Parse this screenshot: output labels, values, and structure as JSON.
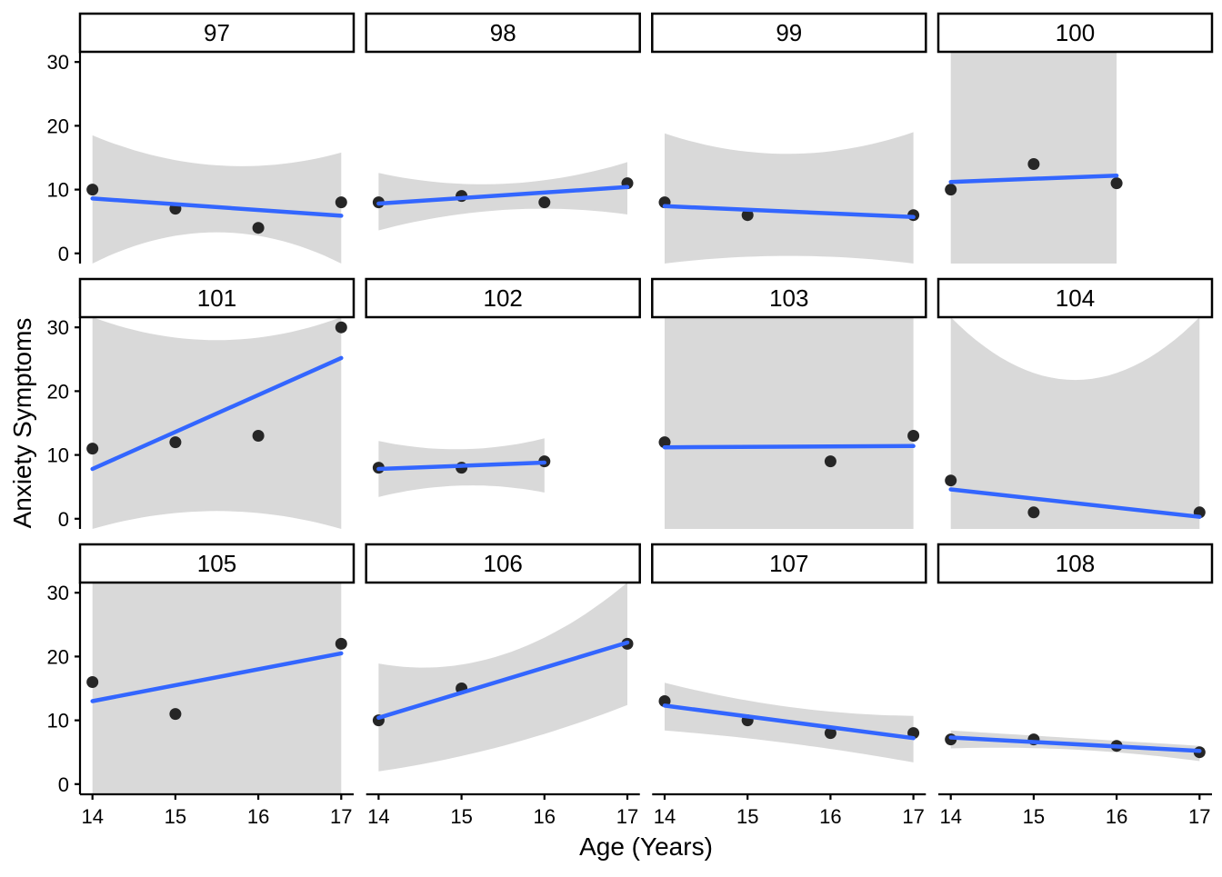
{
  "figure": {
    "xlabel": "Age (Years)",
    "ylabel": "Anxiety Symptoms"
  },
  "chart_data": {
    "type": "scatter",
    "facet_variable_values": [
      "97",
      "98",
      "99",
      "100",
      "101",
      "102",
      "103",
      "104",
      "105",
      "106",
      "107",
      "108"
    ],
    "xlabel": "Age (Years)",
    "ylabel": "Anxiety Symptoms",
    "x_ticks": [
      14,
      15,
      16,
      17
    ],
    "y_ticks": [
      0,
      10,
      20,
      30
    ],
    "xlim": [
      14,
      17
    ],
    "ylim": [
      0,
      30
    ],
    "grid": false,
    "colors": {
      "smooth_line": "#3366FF",
      "point": "#262626",
      "ci_band": "#D9D9D9",
      "axis": "#000000",
      "strip_bg": "#FFFFFF",
      "strip_border": "#000000",
      "panel_bg": "#FFFFFF"
    },
    "facets": [
      {
        "label": "97",
        "points": [
          [
            14,
            10
          ],
          [
            15,
            7
          ],
          [
            16,
            4
          ],
          [
            17,
            8
          ]
        ],
        "line": {
          "x": [
            14,
            17
          ],
          "y": [
            8.6,
            5.9
          ]
        },
        "band": {
          "x": [
            14,
            15.5,
            17
          ],
          "upper": [
            18.5,
            13.8,
            15.8
          ],
          "lower": [
            -1.6,
            3.3,
            -1.6
          ]
        }
      },
      {
        "label": "98",
        "points": [
          [
            14,
            8
          ],
          [
            15,
            9
          ],
          [
            16,
            8
          ],
          [
            17,
            11
          ]
        ],
        "line": {
          "x": [
            14,
            17
          ],
          "y": [
            7.8,
            10.4
          ]
        },
        "band": {
          "x": [
            14,
            15.5,
            17
          ],
          "upper": [
            12.6,
            10.9,
            14.3
          ],
          "lower": [
            3.6,
            6.8,
            6.1
          ]
        }
      },
      {
        "label": "99",
        "points": [
          [
            14,
            8
          ],
          [
            15,
            6
          ],
          [
            17,
            6
          ]
        ],
        "line": {
          "x": [
            14,
            17
          ],
          "y": [
            7.4,
            5.7
          ]
        },
        "band": {
          "x": [
            14,
            15.5,
            17
          ],
          "upper": [
            18.8,
            15.6,
            19.0
          ],
          "lower": [
            -1.6,
            -0.4,
            -1.6
          ]
        }
      },
      {
        "label": "100",
        "points": [
          [
            14,
            10
          ],
          [
            15,
            14
          ],
          [
            16,
            11
          ]
        ],
        "line": {
          "x": [
            14,
            16
          ],
          "y": [
            11.2,
            12.2
          ]
        },
        "band": {
          "x": [
            14,
            16
          ],
          "upper": [
            31.6,
            31.6
          ],
          "lower": [
            -1.6,
            -1.6
          ]
        }
      },
      {
        "label": "101",
        "points": [
          [
            14,
            11
          ],
          [
            15,
            12
          ],
          [
            16,
            13
          ],
          [
            17,
            30
          ]
        ],
        "line": {
          "x": [
            14,
            17
          ],
          "y": [
            7.8,
            25.2
          ]
        },
        "band": {
          "x": [
            14,
            15.5,
            17
          ],
          "upper": [
            31.6,
            28.0,
            31.6
          ],
          "lower": [
            -1.6,
            1.2,
            -1.6
          ]
        }
      },
      {
        "label": "102",
        "points": [
          [
            14,
            8
          ],
          [
            15,
            8
          ],
          [
            16,
            9
          ]
        ],
        "line": {
          "x": [
            14,
            16
          ],
          "y": [
            7.8,
            8.8
          ]
        },
        "band": {
          "x": [
            14,
            15,
            16
          ],
          "upper": [
            12.2,
            10.9,
            12.6
          ],
          "lower": [
            3.4,
            5.2,
            4.1
          ]
        }
      },
      {
        "label": "103",
        "points": [
          [
            14,
            12
          ],
          [
            16,
            9
          ],
          [
            17,
            13
          ]
        ],
        "line": {
          "x": [
            14,
            17
          ],
          "y": [
            11.2,
            11.4
          ]
        },
        "band": {
          "x": [
            14,
            17
          ],
          "upper": [
            31.6,
            31.6
          ],
          "lower": [
            -1.6,
            -1.6
          ]
        }
      },
      {
        "label": "104",
        "points": [
          [
            14,
            6
          ],
          [
            15,
            1
          ],
          [
            17,
            1
          ]
        ],
        "line": {
          "x": [
            14,
            17
          ],
          "y": [
            4.6,
            0.3
          ]
        },
        "band": {
          "x": [
            14,
            15.6,
            17
          ],
          "upper": [
            31.6,
            21.8,
            31.6
          ],
          "lower": [
            -1.6,
            -1.6,
            -1.6
          ]
        }
      },
      {
        "label": "105",
        "points": [
          [
            14,
            16
          ],
          [
            15,
            11
          ],
          [
            17,
            22
          ]
        ],
        "line": {
          "x": [
            14,
            17
          ],
          "y": [
            13.0,
            20.5
          ]
        },
        "band": {
          "x": [
            14,
            17
          ],
          "upper": [
            31.6,
            31.6
          ],
          "lower": [
            -1.6,
            -1.6
          ]
        }
      },
      {
        "label": "106",
        "points": [
          [
            14,
            10
          ],
          [
            15,
            15
          ],
          [
            17,
            22
          ]
        ],
        "line": {
          "x": [
            14,
            17
          ],
          "y": [
            10.4,
            22.2
          ]
        },
        "band": {
          "x": [
            14,
            15.5,
            17
          ],
          "upper": [
            18.9,
            20.3,
            31.6
          ],
          "lower": [
            2.0,
            6.0,
            12.4
          ]
        }
      },
      {
        "label": "107",
        "points": [
          [
            14,
            13
          ],
          [
            15,
            10
          ],
          [
            16,
            8
          ],
          [
            17,
            8
          ]
        ],
        "line": {
          "x": [
            14,
            17
          ],
          "y": [
            12.3,
            7.2
          ]
        },
        "band": {
          "x": [
            14,
            15.5,
            17
          ],
          "upper": [
            15.9,
            12.1,
            10.7
          ],
          "lower": [
            8.4,
            6.4,
            3.4
          ]
        }
      },
      {
        "label": "108",
        "points": [
          [
            14,
            7
          ],
          [
            15,
            7
          ],
          [
            16,
            6
          ],
          [
            17,
            5
          ]
        ],
        "line": {
          "x": [
            14,
            17
          ],
          "y": [
            7.3,
            5.2
          ]
        },
        "band": {
          "x": [
            14,
            15.5,
            17
          ],
          "upper": [
            8.4,
            7.2,
            6.0
          ],
          "lower": [
            5.6,
            5.4,
            3.6
          ]
        }
      }
    ]
  }
}
